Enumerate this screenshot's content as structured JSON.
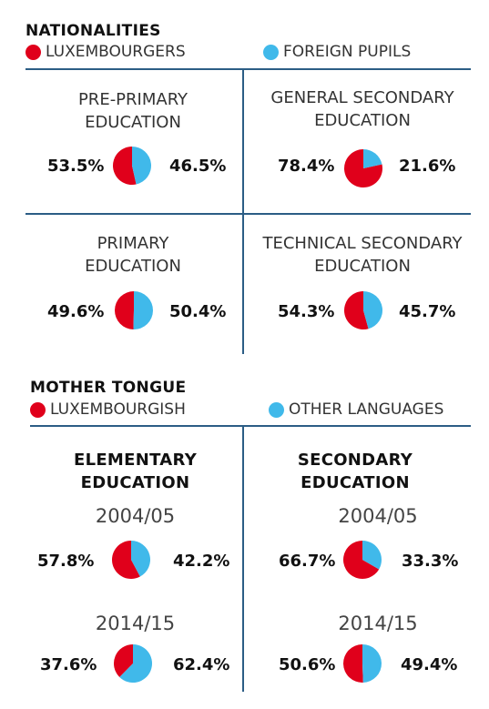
{
  "colors": {
    "lux": "#e0001b",
    "foreign": "#40b9ea",
    "rule": "#2c5d85"
  },
  "nationalities": {
    "title": "NATIONALITIES",
    "legend": [
      "LUXEMBOURGERS",
      "FOREIGN PUPILS"
    ]
  },
  "mother_tongue": {
    "title": "MOTHER TONGUE",
    "legend": [
      "LUXEMBOURGISH",
      "OTHER LANGUAGES"
    ]
  },
  "chart_data": [
    {
      "type": "pie",
      "title_lines": [
        "PRE-PRIMARY",
        "EDUCATION"
      ],
      "labels": [
        "LUXEMBOURGERS",
        "FOREIGN PUPILS"
      ],
      "values": [
        53.5,
        46.5
      ],
      "value_labels": [
        "53.5%",
        "46.5%"
      ]
    },
    {
      "type": "pie",
      "title_lines": [
        "GENERAL SECONDARY",
        "EDUCATION"
      ],
      "labels": [
        "LUXEMBOURGERS",
        "FOREIGN PUPILS"
      ],
      "values": [
        78.4,
        21.6
      ],
      "value_labels": [
        "78.4%",
        "21.6%"
      ]
    },
    {
      "type": "pie",
      "title_lines": [
        "PRIMARY",
        "EDUCATION"
      ],
      "labels": [
        "LUXEMBOURGERS",
        "FOREIGN PUPILS"
      ],
      "values": [
        49.6,
        50.4
      ],
      "value_labels": [
        "49.6%",
        "50.4%"
      ]
    },
    {
      "type": "pie",
      "title_lines": [
        "TECHNICAL SECONDARY",
        "EDUCATION"
      ],
      "labels": [
        "LUXEMBOURGERS",
        "FOREIGN PUPILS"
      ],
      "values": [
        54.3,
        45.7
      ],
      "value_labels": [
        "54.3%",
        "45.7%"
      ]
    },
    {
      "type": "pie",
      "title_lines": [
        "ELEMENTARY",
        "EDUCATION"
      ],
      "year": "2004/05",
      "labels": [
        "LUXEMBOURGISH",
        "OTHER LANGUAGES"
      ],
      "values": [
        57.8,
        42.2
      ],
      "value_labels": [
        "57.8%",
        "42.2%"
      ]
    },
    {
      "type": "pie",
      "title_lines": [
        "ELEMENTARY",
        "EDUCATION"
      ],
      "year": "2014/15",
      "labels": [
        "LUXEMBOURGISH",
        "OTHER LANGUAGES"
      ],
      "values": [
        37.6,
        62.4
      ],
      "value_labels": [
        "37.6%",
        "62.4%"
      ]
    },
    {
      "type": "pie",
      "title_lines": [
        "SECONDARY",
        "EDUCATION"
      ],
      "year": "2004/05",
      "labels": [
        "LUXEMBOURGISH",
        "OTHER LANGUAGES"
      ],
      "values": [
        66.7,
        33.3
      ],
      "value_labels": [
        "66.7%",
        "33.3%"
      ]
    },
    {
      "type": "pie",
      "title_lines": [
        "SECONDARY",
        "EDUCATION"
      ],
      "year": "2014/15",
      "labels": [
        "LUXEMBOURGISH",
        "OTHER LANGUAGES"
      ],
      "values": [
        50.6,
        49.4
      ],
      "value_labels": [
        "50.6%",
        "49.4%"
      ]
    }
  ]
}
